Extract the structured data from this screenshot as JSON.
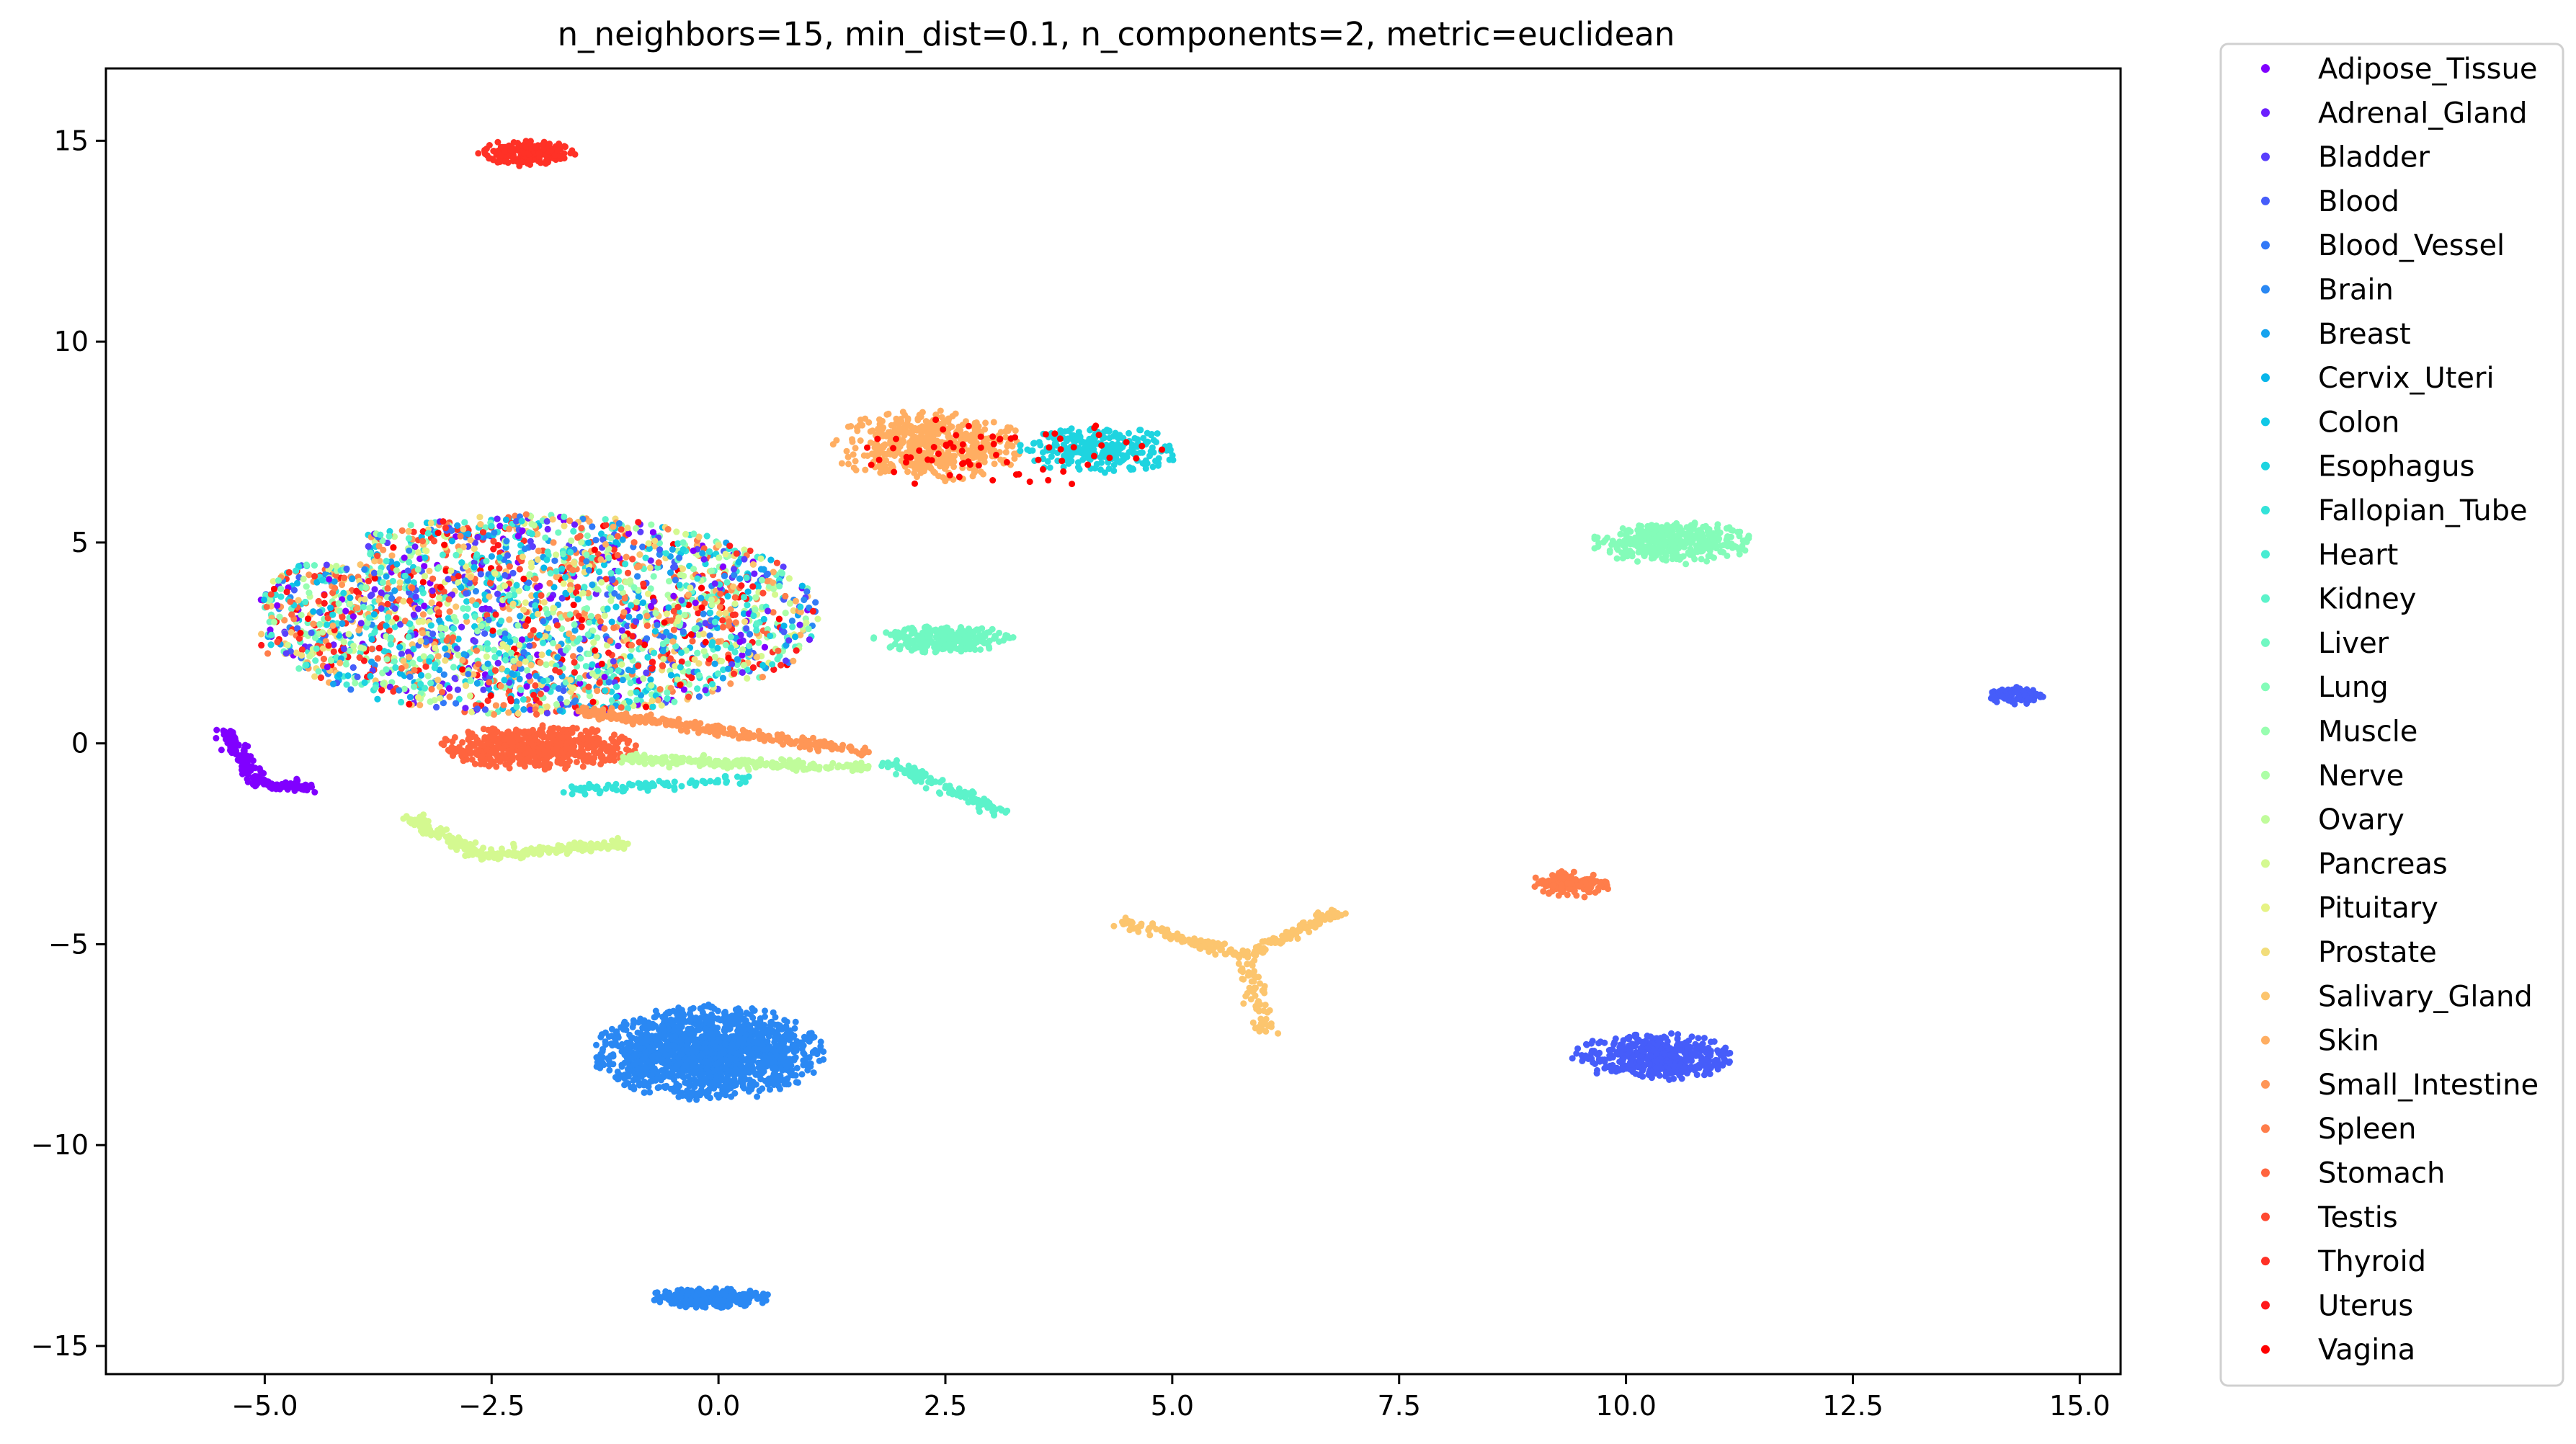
{
  "chart_data": {
    "type": "scatter",
    "title": "n_neighbors=15, min_dist=0.1, n_components=2, metric=euclidean",
    "xlabel": "",
    "ylabel": "",
    "xlim": [
      -6.75,
      15.45
    ],
    "ylim": [
      -15.7,
      16.8
    ],
    "xticks": [
      -5.0,
      -2.5,
      0.0,
      2.5,
      5.0,
      7.5,
      10.0,
      12.5,
      15.0
    ],
    "xtick_labels": [
      "−5.0",
      "−2.5",
      "0.0",
      "2.5",
      "5.0",
      "7.5",
      "10.0",
      "12.5",
      "15.0"
    ],
    "yticks": [
      -15,
      -10,
      -5,
      0,
      5,
      10,
      15
    ],
    "ytick_labels": [
      "−15",
      "−10",
      "−5",
      "0",
      "5",
      "10",
      "15"
    ],
    "grid": false,
    "legend_position": "outside-right",
    "colormap": "rainbow",
    "series": [
      {
        "name": "Adipose_Tissue",
        "color": "#8000ff"
      },
      {
        "name": "Adrenal_Gland",
        "color": "#6c1ffe"
      },
      {
        "name": "Bladder",
        "color": "#5a3ffd"
      },
      {
        "name": "Blood",
        "color": "#465dfa"
      },
      {
        "name": "Blood_Vessel",
        "color": "#3279f7"
      },
      {
        "name": "Brain",
        "color": "#2a88f3"
      },
      {
        "name": "Breast",
        "color": "#16a3ee"
      },
      {
        "name": "Cervix_Uteri",
        "color": "#08b6ea"
      },
      {
        "name": "Colon",
        "color": "#10c8e6"
      },
      {
        "name": "Esophagus",
        "color": "#1ed4e0"
      },
      {
        "name": "Fallopian_Tube",
        "color": "#34e3d9"
      },
      {
        "name": "Heart",
        "color": "#48ecd2"
      },
      {
        "name": "Kidney",
        "color": "#5cf3ca"
      },
      {
        "name": "Liver",
        "color": "#70f8c2"
      },
      {
        "name": "Lung",
        "color": "#84fcb9"
      },
      {
        "name": "Muscle",
        "color": "#98feb0"
      },
      {
        "name": "Nerve",
        "color": "#acfea6"
      },
      {
        "name": "Ovary",
        "color": "#c0fc9b"
      },
      {
        "name": "Pancreas",
        "color": "#d4f990"
      },
      {
        "name": "Pituitary",
        "color": "#e6f385"
      },
      {
        "name": "Prostate",
        "color": "#f2dd7a"
      },
      {
        "name": "Salivary_Gland",
        "color": "#fcc56e"
      },
      {
        "name": "Skin",
        "color": "#ffae62"
      },
      {
        "name": "Small_Intestine",
        "color": "#ff9656"
      },
      {
        "name": "Spleen",
        "color": "#ff7d4a"
      },
      {
        "name": "Stomach",
        "color": "#ff643e"
      },
      {
        "name": "Testis",
        "color": "#ff4a32"
      },
      {
        "name": "Thyroid",
        "color": "#ff3126"
      },
      {
        "name": "Uterus",
        "color": "#ff181a"
      },
      {
        "name": "Vagina",
        "color": "#ff0000"
      }
    ],
    "clusters": [
      {
        "series": "Thyroid",
        "shape": "blob",
        "cx": -2.1,
        "cy": 14.7,
        "rx": 0.55,
        "ry": 0.35,
        "n": 180
      },
      {
        "series": "Skin",
        "shape": "blob",
        "cx": 2.3,
        "cy": 7.4,
        "rx": 1.1,
        "ry": 0.9,
        "n": 500
      },
      {
        "series": "Esophagus",
        "shape": "blob",
        "cx": 4.2,
        "cy": 7.3,
        "rx": 0.9,
        "ry": 0.6,
        "n": 260
      },
      {
        "series": "Vagina",
        "shape": "blob",
        "cx": 3.0,
        "cy": 7.2,
        "rx": 2.0,
        "ry": 0.9,
        "n": 70
      },
      {
        "series": "Lung",
        "shape": "blob",
        "cx": 10.5,
        "cy": 5.0,
        "rx": 0.9,
        "ry": 0.55,
        "n": 380
      },
      {
        "series": "Blood",
        "shape": "blob",
        "cx": 14.3,
        "cy": 1.2,
        "rx": 0.3,
        "ry": 0.25,
        "n": 80
      },
      {
        "series": "Spleen",
        "shape": "blob",
        "cx": 9.4,
        "cy": -3.5,
        "rx": 0.45,
        "ry": 0.35,
        "n": 140
      },
      {
        "series": "Blood",
        "shape": "blob",
        "cx": 10.3,
        "cy": -7.8,
        "rx": 0.9,
        "ry": 0.6,
        "n": 450
      },
      {
        "series": "Brain",
        "shape": "blob",
        "cx": -0.1,
        "cy": -7.7,
        "rx": 1.3,
        "ry": 1.2,
        "n": 1500
      },
      {
        "series": "Brain",
        "shape": "blob",
        "cx": -0.1,
        "cy": -13.8,
        "rx": 0.7,
        "ry": 0.25,
        "n": 260
      },
      {
        "series": "Stomach",
        "shape": "blob",
        "cx": -2.0,
        "cy": -0.1,
        "rx": 1.1,
        "ry": 0.55,
        "n": 600
      },
      {
        "series": "Liver",
        "shape": "blob",
        "cx": 2.5,
        "cy": 2.6,
        "rx": 0.8,
        "ry": 0.35,
        "n": 260
      },
      {
        "series": "Mix",
        "shape": "mix",
        "cx": -2.0,
        "cy": 3.2,
        "rx": 3.1,
        "ry": 2.5,
        "n": 7000
      },
      {
        "series": "Salivary_Gland",
        "shape": "line",
        "path": [
          [
            4.4,
            -4.4
          ],
          [
            5.8,
            -5.3
          ],
          [
            6.8,
            -4.2
          ]
        ],
        "n": 200
      },
      {
        "series": "Salivary_Gland",
        "shape": "line",
        "path": [
          [
            5.8,
            -5.3
          ],
          [
            6.05,
            -7.2
          ]
        ],
        "n": 70
      },
      {
        "series": "Kidney",
        "shape": "line",
        "path": [
          [
            1.9,
            -0.5
          ],
          [
            3.1,
            -1.7
          ]
        ],
        "n": 120
      },
      {
        "series": "Pancreas",
        "shape": "line",
        "path": [
          [
            -3.4,
            -1.9
          ],
          [
            -2.6,
            -2.8
          ],
          [
            -1.0,
            -2.5
          ]
        ],
        "n": 280
      },
      {
        "series": "Adipose_Tissue",
        "shape": "line",
        "path": [
          [
            -5.4,
            0.3
          ],
          [
            -5.1,
            -1.0
          ],
          [
            -4.4,
            -1.1
          ]
        ],
        "n": 180
      },
      {
        "series": "Ovary",
        "shape": "line",
        "path": [
          [
            -1.0,
            -0.4
          ],
          [
            1.6,
            -0.6
          ]
        ],
        "n": 220
      },
      {
        "series": "Small_Intestine",
        "shape": "line",
        "path": [
          [
            -1.5,
            0.8
          ],
          [
            1.6,
            -0.2
          ]
        ],
        "n": 260
      },
      {
        "series": "Fallopian_Tube",
        "shape": "line",
        "path": [
          [
            -1.7,
            -1.2
          ],
          [
            0.3,
            -0.9
          ]
        ],
        "n": 80
      }
    ]
  }
}
